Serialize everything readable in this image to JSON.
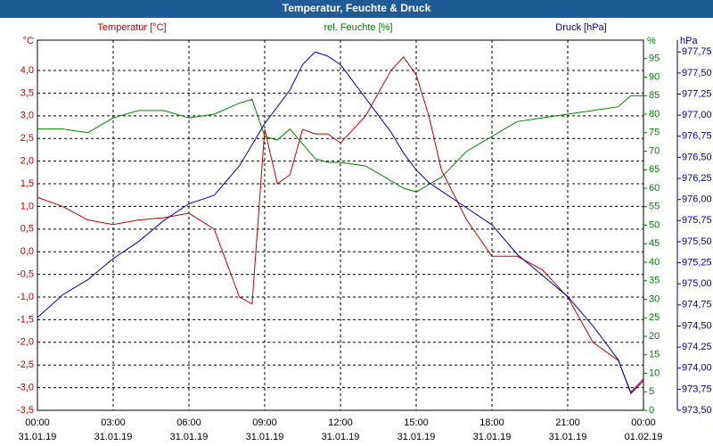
{
  "chart_data": {
    "type": "line",
    "title": "Temperatur, Feuchte & Druck",
    "ylabel": "Temperatur [°C]",
    "yunit": "°C",
    "y2label": "rel. Feuchte [%]",
    "y2unit": "%",
    "y3label": "Druck [hPa]",
    "y3unit": "hPa",
    "grid": true,
    "xlim": [
      0,
      24
    ],
    "xticks": [
      {
        "value": 0,
        "label": "00:00"
      },
      {
        "value": 3,
        "label": "03:00"
      },
      {
        "value": 6,
        "label": "06:00"
      },
      {
        "value": 9,
        "label": "09:00"
      },
      {
        "value": 12,
        "label": "12:00"
      },
      {
        "value": 15,
        "label": "15:00"
      },
      {
        "value": 18,
        "label": "18:00"
      },
      {
        "value": 21,
        "label": "21:00"
      },
      {
        "value": 24,
        "label": "00:00"
      }
    ],
    "xtick_dates": [
      "31.01.19",
      "31.01.19",
      "31.01.19",
      "31.01.19",
      "31.01.19",
      "31.01.19",
      "31.01.19",
      "31.01.19",
      "01.02.19"
    ],
    "ylim": [
      -3.5,
      4.67
    ],
    "yticks": [
      {
        "value": -3.5,
        "label": "-3,5"
      },
      {
        "value": -3,
        "label": "-3,0"
      },
      {
        "value": -2.5,
        "label": "-2,5"
      },
      {
        "value": -2,
        "label": "-2,0"
      },
      {
        "value": -1.5,
        "label": "-1,5"
      },
      {
        "value": -1,
        "label": "-1,0"
      },
      {
        "value": -0.5,
        "label": "-0,5"
      },
      {
        "value": 0,
        "label": "0,0"
      },
      {
        "value": 0.5,
        "label": "0,5"
      },
      {
        "value": 1,
        "label": "1,0"
      },
      {
        "value": 1.5,
        "label": "1,5"
      },
      {
        "value": 2,
        "label": "2,0"
      },
      {
        "value": 2.5,
        "label": "2,5"
      },
      {
        "value": 3,
        "label": "3,0"
      },
      {
        "value": 3.5,
        "label": "3,5"
      },
      {
        "value": 4,
        "label": "4,0"
      }
    ],
    "y2lim": [
      0,
      100
    ],
    "y2ticks": [
      0,
      5,
      10,
      15,
      20,
      25,
      30,
      35,
      40,
      45,
      50,
      55,
      60,
      65,
      70,
      75,
      80,
      85,
      90,
      95
    ],
    "y3lim": [
      973.5,
      977.89
    ],
    "y3ticks": [
      {
        "value": 973.5,
        "label": "973,50"
      },
      {
        "value": 973.75,
        "label": "973,75"
      },
      {
        "value": 974,
        "label": "974,00"
      },
      {
        "value": 974.25,
        "label": "974,25"
      },
      {
        "value": 974.5,
        "label": "974,50"
      },
      {
        "value": 974.75,
        "label": "974,75"
      },
      {
        "value": 975,
        "label": "975,00"
      },
      {
        "value": 975.25,
        "label": "975,25"
      },
      {
        "value": 975.5,
        "label": "975,50"
      },
      {
        "value": 975.75,
        "label": "975,75"
      },
      {
        "value": 976,
        "label": "976,00"
      },
      {
        "value": 976.25,
        "label": "976,25"
      },
      {
        "value": 976.5,
        "label": "976,50"
      },
      {
        "value": 976.75,
        "label": "976,75"
      },
      {
        "value": 977,
        "label": "977,00"
      },
      {
        "value": 977.25,
        "label": "977,25"
      },
      {
        "value": 977.5,
        "label": "977,50"
      },
      {
        "value": 977.75,
        "label": "977,75"
      }
    ],
    "x": [
      0,
      1,
      2,
      3,
      4,
      5,
      6,
      7,
      8,
      8.5,
      9,
      9.5,
      10,
      10.5,
      11,
      11.5,
      12,
      13,
      14,
      14.5,
      15,
      15.5,
      16,
      17,
      18,
      19,
      20,
      21,
      22,
      23,
      23.5,
      24
    ],
    "series": [
      {
        "name": "Temperatur",
        "color": "#c00000",
        "axis": "y",
        "values": [
          1.2,
          1.0,
          0.7,
          0.6,
          0.7,
          0.75,
          0.85,
          0.5,
          -1.0,
          -1.15,
          2.7,
          1.5,
          1.7,
          2.7,
          2.6,
          2.6,
          2.4,
          3.0,
          4.0,
          4.3,
          3.9,
          3.0,
          1.8,
          0.7,
          -0.1,
          -0.1,
          -0.4,
          -1.0,
          -2.0,
          -2.4,
          -3.1,
          -2.8
        ]
      },
      {
        "name": "rel. Feuchte",
        "color": "#008000",
        "axis": "y2",
        "values": [
          76,
          76,
          75,
          79,
          81,
          81,
          79,
          80,
          83,
          84,
          74,
          73,
          76,
          72,
          68,
          67,
          67,
          66,
          62,
          60,
          59,
          61,
          63,
          70,
          74,
          78,
          79,
          80,
          81,
          82,
          85,
          85
        ]
      },
      {
        "name": "Druck",
        "color": "#0000a0",
        "axis": "y3",
        "values": [
          974.6,
          974.87,
          975.05,
          975.3,
          975.5,
          975.75,
          975.95,
          976.05,
          976.4,
          976.65,
          976.9,
          977.1,
          977.3,
          977.6,
          977.75,
          977.7,
          977.6,
          977.2,
          976.8,
          976.55,
          976.35,
          976.2,
          976.1,
          975.9,
          975.7,
          975.35,
          975.1,
          974.85,
          974.5,
          974.1,
          973.7,
          973.85
        ]
      }
    ]
  }
}
